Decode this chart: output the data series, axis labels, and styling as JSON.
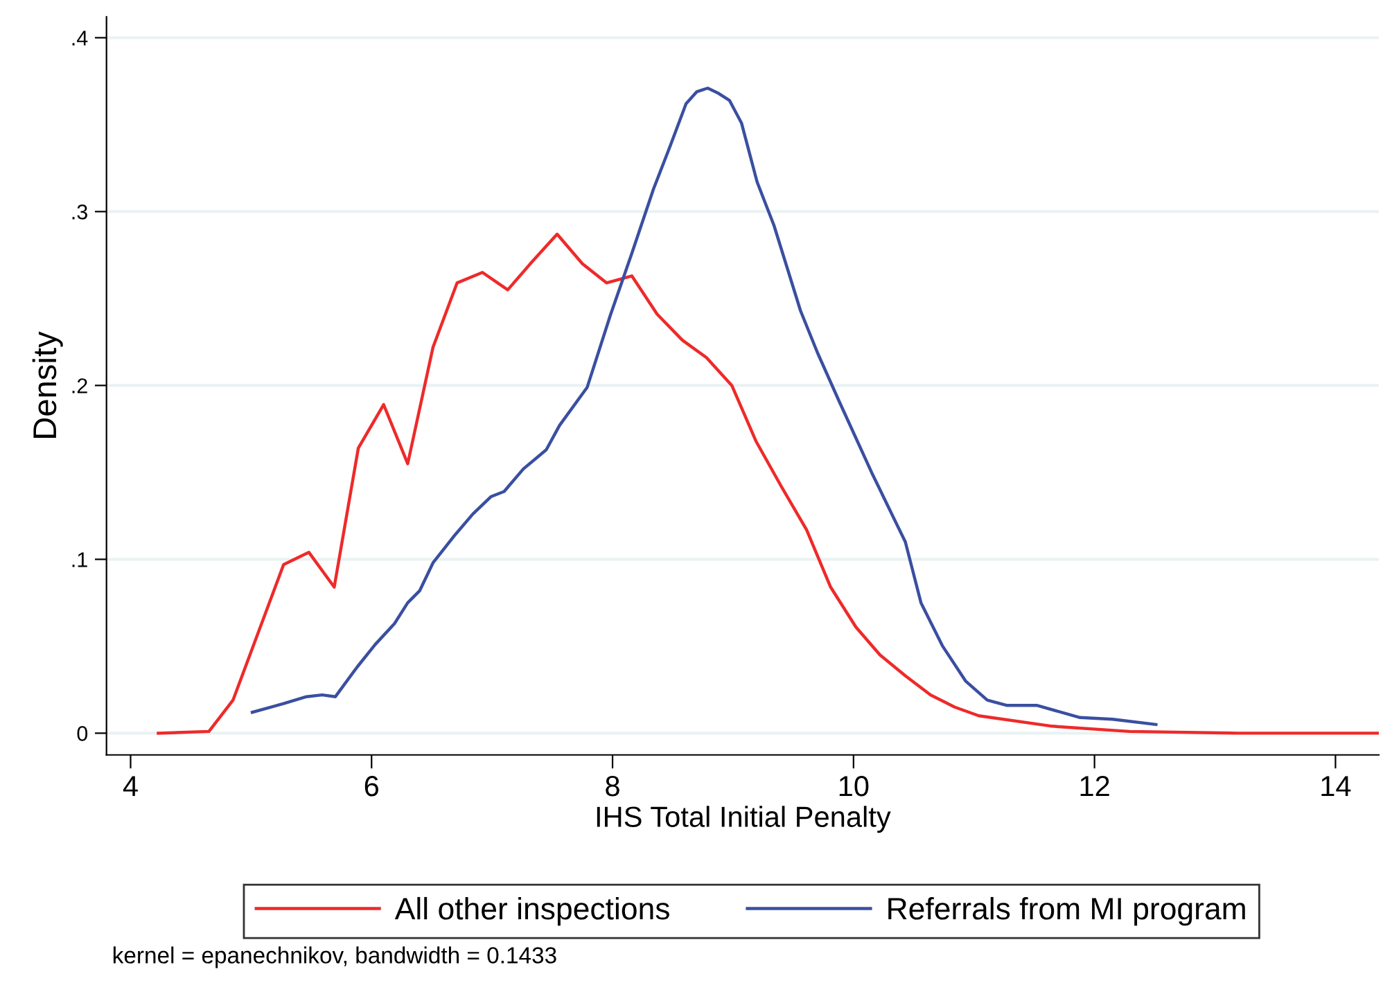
{
  "chart_data": {
    "type": "line",
    "xlabel": "IHS Total Initial Penalty",
    "ylabel": "Density",
    "annotations": [
      "kernel = epanechnikov, bandwidth = 0.1433"
    ],
    "xlim": [
      3.8,
      14.36
    ],
    "xticks": [
      4,
      6,
      8,
      10,
      12,
      14
    ],
    "ylim": [
      -0.0125,
      0.412
    ],
    "yticks": [
      {
        "value": 0,
        "label": "0"
      },
      {
        "value": 0.1,
        "label": ".1"
      },
      {
        "value": 0.2,
        "label": ".2"
      },
      {
        "value": 0.3,
        "label": ".3"
      },
      {
        "value": 0.4,
        "label": ".4"
      }
    ],
    "grid": "y",
    "legend": "bottom",
    "marker": "none",
    "line_style": "solid",
    "series": [
      {
        "name": "All other inspections",
        "color": "#ee2a2a",
        "x": [
          4.23,
          4.65,
          4.85,
          5.27,
          5.48,
          5.69,
          5.89,
          6.1,
          6.3,
          6.51,
          6.71,
          6.92,
          7.13,
          7.33,
          7.54,
          7.75,
          7.95,
          8.16,
          8.37,
          8.58,
          8.78,
          8.99,
          9.19,
          9.4,
          9.61,
          9.81,
          10.02,
          10.22,
          10.43,
          10.64,
          10.84,
          11.04,
          11.65,
          12.29,
          13.19,
          14.36
        ],
        "values": [
          0.0,
          0.001,
          0.019,
          0.097,
          0.104,
          0.084,
          0.164,
          0.189,
          0.155,
          0.222,
          0.259,
          0.265,
          0.255,
          0.271,
          0.287,
          0.27,
          0.259,
          0.263,
          0.241,
          0.226,
          0.216,
          0.2,
          0.168,
          0.142,
          0.117,
          0.084,
          0.061,
          0.045,
          0.033,
          0.022,
          0.015,
          0.01,
          0.004,
          0.001,
          0.0,
          0.0
        ]
      },
      {
        "name": "Referrals from MI program",
        "color": "#3a4fa0",
        "x": [
          5.01,
          5.27,
          5.46,
          5.59,
          5.7,
          5.88,
          6.03,
          6.19,
          6.3,
          6.4,
          6.51,
          6.68,
          6.84,
          6.99,
          7.1,
          7.26,
          7.45,
          7.56,
          7.79,
          7.98,
          8.16,
          8.34,
          8.48,
          8.61,
          8.7,
          8.79,
          8.88,
          8.97,
          9.07,
          9.2,
          9.34,
          9.56,
          9.7,
          9.88,
          10.15,
          10.43,
          10.56,
          10.74,
          10.93,
          11.11,
          11.27,
          11.52,
          11.88,
          12.15,
          12.51
        ],
        "values": [
          0.012,
          0.017,
          0.021,
          0.022,
          0.021,
          0.038,
          0.051,
          0.063,
          0.075,
          0.082,
          0.098,
          0.113,
          0.126,
          0.136,
          0.139,
          0.152,
          0.163,
          0.177,
          0.199,
          0.24,
          0.276,
          0.313,
          0.338,
          0.362,
          0.369,
          0.371,
          0.368,
          0.364,
          0.351,
          0.317,
          0.292,
          0.243,
          0.219,
          0.191,
          0.15,
          0.11,
          0.075,
          0.05,
          0.03,
          0.019,
          0.016,
          0.016,
          0.009,
          0.008,
          0.005
        ]
      }
    ]
  }
}
